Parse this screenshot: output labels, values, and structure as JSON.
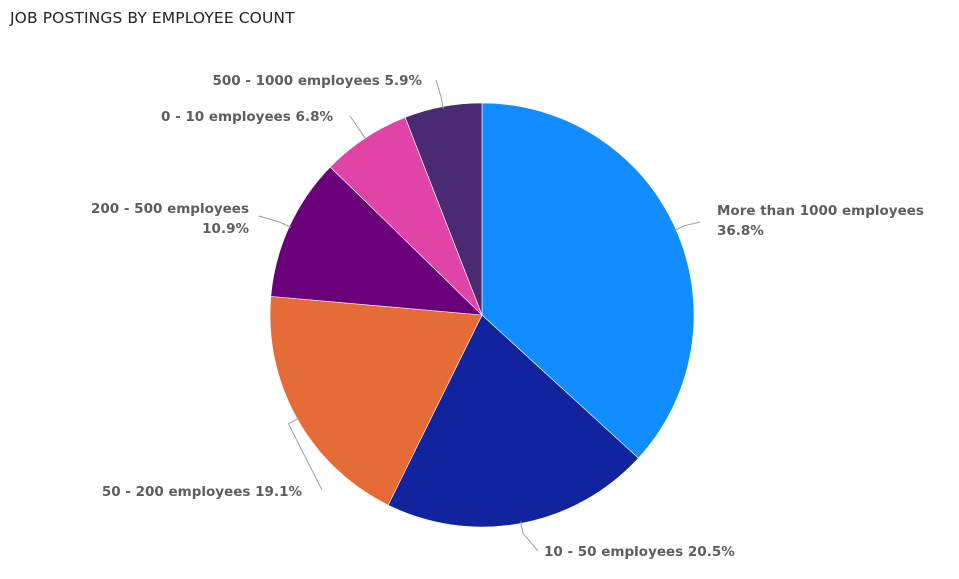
{
  "chart_data": {
    "type": "pie",
    "title": "JOB POSTINGS BY EMPLOYEE COUNT",
    "slices": [
      {
        "name": "More than 1000 employees",
        "value": 36.8,
        "percent_label": "36.8%",
        "color": "#118dff"
      },
      {
        "name": "10 - 50 employees",
        "value": 20.5,
        "percent_label": "20.5%",
        "color": "#12239e"
      },
      {
        "name": "50 - 200 employees",
        "value": 19.1,
        "percent_label": "19.1%",
        "color": "#e66c37"
      },
      {
        "name": "200 - 500 employees",
        "value": 10.9,
        "percent_label": "10.9%",
        "color": "#6b007b"
      },
      {
        "name": "0 - 10 employees",
        "value": 6.8,
        "percent_label": "6.8%",
        "color": "#e044a7"
      },
      {
        "name": "500 - 1000 employees",
        "value": 5.9,
        "percent_label": "5.9%",
        "color": "#4a2a73"
      }
    ],
    "legend": "none",
    "start_angle": "top",
    "direction": "clockwise"
  }
}
